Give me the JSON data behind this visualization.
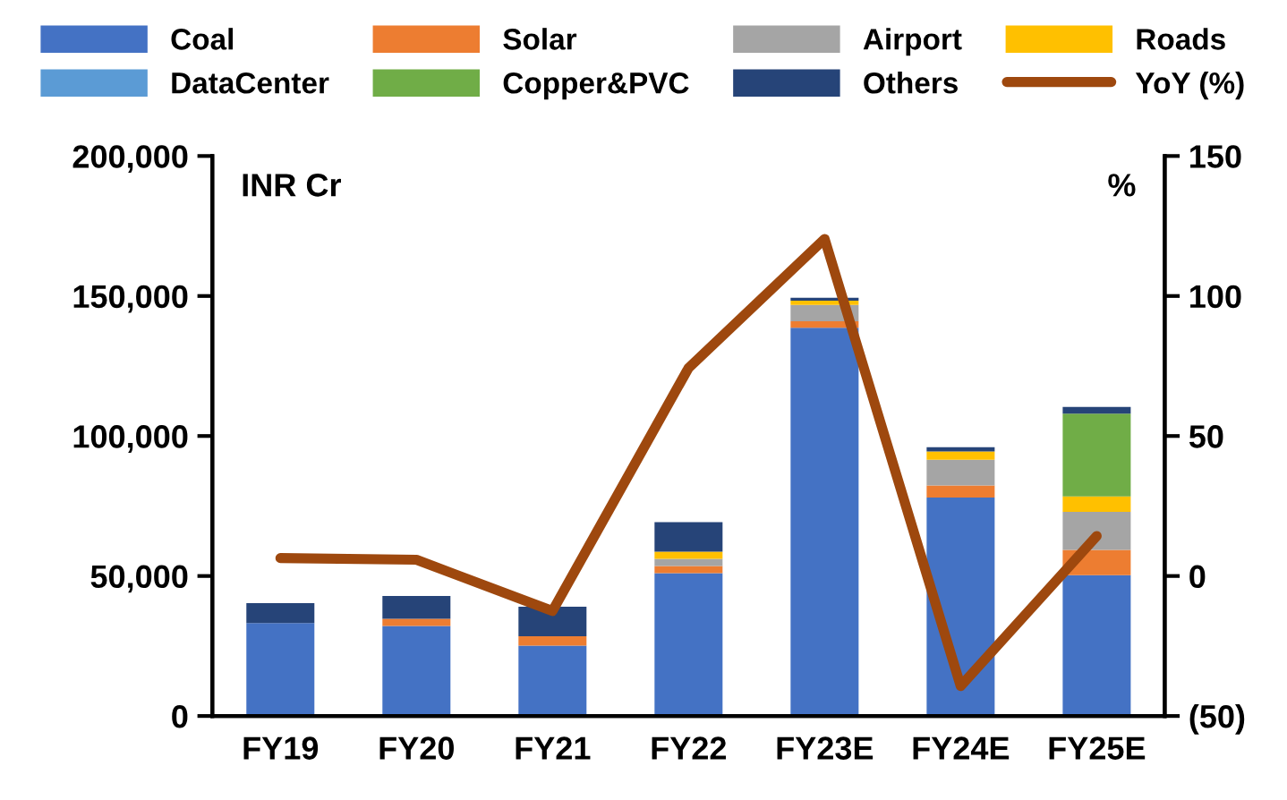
{
  "chart_data": {
    "type": "bar",
    "stacked": true,
    "categories": [
      "FY19",
      "FY20",
      "FY21",
      "FY22",
      "FY23E",
      "FY24E",
      "FY25E"
    ],
    "series": [
      {
        "name": "Coal",
        "color": "#4472c4",
        "values": [
          33200,
          32200,
          25100,
          51000,
          138700,
          78000,
          50300
        ]
      },
      {
        "name": "Solar",
        "color": "#ed7d31",
        "values": [
          0,
          2500,
          3400,
          2600,
          2300,
          4300,
          9000
        ]
      },
      {
        "name": "Airport",
        "color": "#a5a5a5",
        "values": [
          0,
          0,
          0,
          2500,
          5800,
          9200,
          13600
        ]
      },
      {
        "name": "Roads",
        "color": "#ffc000",
        "values": [
          0,
          0,
          0,
          2600,
          1500,
          3000,
          5500
        ]
      },
      {
        "name": "DataCenter",
        "color": "#5b9bd5",
        "values": [
          0,
          0,
          0,
          0,
          0,
          0,
          0
        ]
      },
      {
        "name": "Copper&PVC",
        "color": "#70ad47",
        "values": [
          0,
          0,
          0,
          0,
          0,
          0,
          29600
        ]
      },
      {
        "name": "Others",
        "color": "#264478",
        "values": [
          7100,
          8200,
          10500,
          10500,
          1100,
          1500,
          2400
        ]
      },
      {
        "name": "YoY (%)",
        "type": "line",
        "axis": "y2",
        "color": "#9e480e",
        "values": [
          6.4,
          5.8,
          -12.5,
          74.3,
          120.4,
          -39.3,
          14.3
        ]
      }
    ],
    "ylim": [
      0,
      200000
    ],
    "yticks": [
      {
        "value": 0,
        "label": "0"
      },
      {
        "value": 50000,
        "label": "50,000"
      },
      {
        "value": 100000,
        "label": "100,000"
      },
      {
        "value": 150000,
        "label": "150,000"
      },
      {
        "value": 200000,
        "label": "200,000"
      }
    ],
    "y2lim": [
      -50,
      150
    ],
    "y2ticks": [
      {
        "value": -50,
        "label": "(50)"
      },
      0,
      50,
      100,
      150
    ],
    "annotations": [
      "INR Cr",
      "%"
    ],
    "legend": "top",
    "grid": false
  }
}
